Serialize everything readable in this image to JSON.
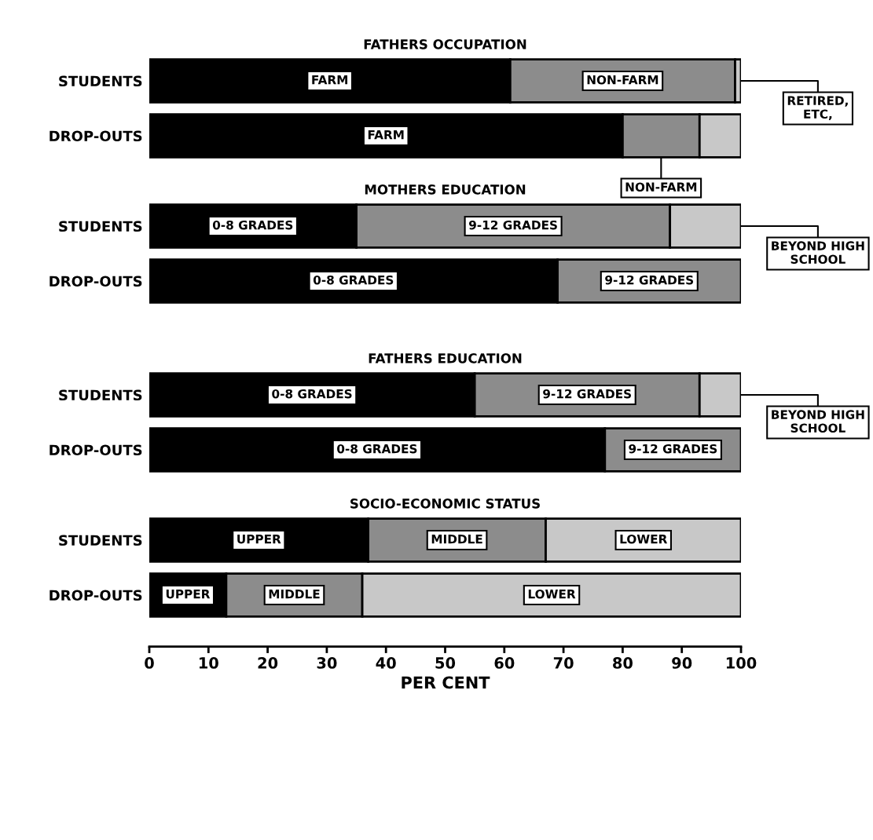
{
  "chart_data": [
    {
      "type": "bar",
      "orientation": "horizontal",
      "stacked": true,
      "title": "FATHERS OCCUPATION",
      "categories": [
        "STUDENTS",
        "DROP-OUTS"
      ],
      "xlim": [
        0,
        100
      ],
      "tick_labels": "y",
      "series": [
        {
          "color": "#000000",
          "values": [
            61,
            80
          ],
          "value_labels": [
            "FARM",
            "FARM"
          ]
        },
        {
          "color": "#8c8c8c",
          "values": [
            38,
            13
          ],
          "value_labels": [
            "NON-FARM",
            "NON-FARM"
          ]
        },
        {
          "color": "#c8c8c8",
          "values": [
            1,
            7
          ],
          "value_labels": [
            "RETIRED, ETC,",
            null
          ]
        }
      ]
    },
    {
      "type": "bar",
      "orientation": "horizontal",
      "stacked": true,
      "title": "MOTHERS EDUCATION",
      "categories": [
        "STUDENTS",
        "DROP-OUTS"
      ],
      "xlim": [
        0,
        100
      ],
      "tick_labels": "y",
      "series": [
        {
          "color": "#000000",
          "values": [
            35,
            69
          ],
          "value_labels": [
            "0-8 GRADES",
            "0-8 GRADES"
          ]
        },
        {
          "color": "#8c8c8c",
          "values": [
            53,
            31
          ],
          "value_labels": [
            "9-12 GRADES",
            "9-12 GRADES"
          ]
        },
        {
          "color": "#c8c8c8",
          "values": [
            12,
            null
          ],
          "value_labels": [
            "BEYOND HIGH SCHOOL",
            null
          ]
        }
      ]
    },
    {
      "type": "bar",
      "orientation": "horizontal",
      "stacked": true,
      "title": "FATHERS EDUCATION",
      "categories": [
        "STUDENTS",
        "DROP-OUTS"
      ],
      "xlim": [
        0,
        100
      ],
      "tick_labels": "y",
      "series": [
        {
          "color": "#000000",
          "values": [
            55,
            77
          ],
          "value_labels": [
            "0-8 GRADES",
            "0-8 GRADES"
          ]
        },
        {
          "color": "#8c8c8c",
          "values": [
            38,
            23
          ],
          "value_labels": [
            "9-12 GRADES",
            "9-12 GRADES"
          ]
        },
        {
          "color": "#c8c8c8",
          "values": [
            7,
            null
          ],
          "value_labels": [
            "BEYOND HIGH SCHOOL",
            null
          ]
        }
      ]
    },
    {
      "type": "bar",
      "orientation": "horizontal",
      "stacked": true,
      "title": "SOCIO-ECONOMIC STATUS",
      "categories": [
        "STUDENTS",
        "DROP-OUTS"
      ],
      "xlim": [
        0,
        100
      ],
      "xticks": [
        0,
        10,
        20,
        30,
        40,
        50,
        60,
        70,
        80,
        90,
        100
      ],
      "xlabel": "PER CENT",
      "series": [
        {
          "color": "#000000",
          "values": [
            37,
            13
          ],
          "value_labels": [
            "UPPER",
            "UPPER"
          ]
        },
        {
          "color": "#8c8c8c",
          "values": [
            30,
            23
          ],
          "value_labels": [
            "MIDDLE",
            "MIDDLE"
          ]
        },
        {
          "color": "#c8c8c8",
          "values": [
            33,
            64
          ],
          "value_labels": [
            "LOWER",
            "LOWER"
          ]
        }
      ]
    }
  ]
}
